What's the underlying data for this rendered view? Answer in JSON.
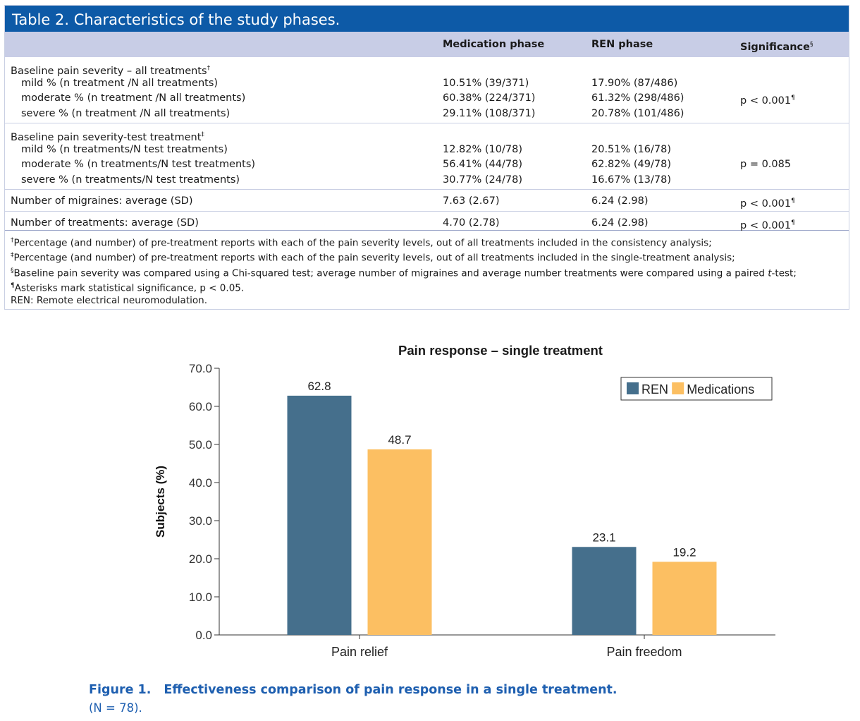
{
  "table": {
    "title": "Table 2.  Characteristics of the study phases.",
    "headers": {
      "col1": "",
      "col2": "Medication phase",
      "col3": "REN phase",
      "col4": "Significance",
      "col4_sup": "§"
    },
    "groups": [
      {
        "heading": "Baseline pain severity – all treatments",
        "heading_sup": "†",
        "rows": [
          {
            "label": "mild % (n treatment /N all treatments)",
            "med": "10.51% (39/371)",
            "ren": "17.90% (87/486)",
            "sig": "",
            "sig_sup": ""
          },
          {
            "label": "moderate % (n treatment /N all treatments)",
            "med": "60.38% (224/371)",
            "ren": "61.32% (298/486)",
            "sig": "p < 0.001",
            "sig_sup": "¶"
          },
          {
            "label": "severe % (n treatment /N all treatments)",
            "med": "29.11% (108/371)",
            "ren": "20.78% (101/486)",
            "sig": "",
            "sig_sup": ""
          }
        ]
      },
      {
        "heading": "Baseline pain severity-test treatment",
        "heading_sup": "‡",
        "rows": [
          {
            "label": "mild % (n treatments/N test treatments)",
            "med": "12.82% (10/78)",
            "ren": "20.51% (16/78)",
            "sig": "",
            "sig_sup": ""
          },
          {
            "label": "moderate % (n treatments/N test treatments)",
            "med": "56.41% (44/78)",
            "ren": "62.82% (49/78)",
            "sig": "p = 0.085",
            "sig_sup": ""
          },
          {
            "label": "severe % (n treatments/N test treatments)",
            "med": "30.77% (24/78)",
            "ren": "16.67% (13/78)",
            "sig": "",
            "sig_sup": ""
          }
        ]
      }
    ],
    "single_rows": [
      {
        "label": "Number of migraines: average (SD)",
        "med": "7.63 (2.67)",
        "ren": "6.24 (2.98)",
        "sig": "p < 0.001",
        "sig_sup": "¶"
      },
      {
        "label": "Number of treatments: average (SD)",
        "med": "4.70 (2.78)",
        "ren": "6.24 (2.98)",
        "sig": "p < 0.001",
        "sig_sup": "¶"
      }
    ],
    "footnotes": [
      {
        "mark": "†",
        "text": "Percentage (and number) of pre-treatment reports with each of the pain severity levels, out of all treatments included in the consistency analysis;"
      },
      {
        "mark": "‡",
        "text": "Percentage (and number) of pre-treatment reports with each of the pain severity levels, out of all treatments included in the single-treatment analysis;"
      },
      {
        "mark": "§",
        "text": "Baseline pain severity was compared using a Chi-squared test; average number of migraines and average number treatments were compared using a paired ",
        "italic": "t",
        "after": "-test;"
      },
      {
        "mark": "¶",
        "text": "Asterisks mark statistical significance, p < 0.05."
      },
      {
        "mark": "",
        "text": "REN: Remote electrical neuromodulation."
      }
    ]
  },
  "chart_data": {
    "type": "bar",
    "title": "Pain response – single treatment",
    "xlabel": "",
    "ylabel": "Subjects (%)",
    "categories": [
      "Pain relief",
      "Pain freedom"
    ],
    "series": [
      {
        "name": "REN",
        "values": [
          62.8,
          23.1
        ],
        "labels": [
          "62.8",
          "23.1"
        ],
        "color": "#456f8c"
      },
      {
        "name": "Medications",
        "values": [
          48.7,
          19.2
        ],
        "labels": [
          "48.7",
          "19.2"
        ],
        "color": "#fcbf62"
      }
    ],
    "ylim": [
      0,
      70
    ],
    "yticks": [
      "0.0",
      "10.0",
      "20.0",
      "30.0",
      "40.0",
      "50.0",
      "60.0",
      "70.0"
    ],
    "grid": false,
    "legend": "top-right"
  },
  "caption": {
    "label": "Figure 1.",
    "text": "Effectiveness comparison of pain response in a single treatment.",
    "note": "(N = 78)."
  },
  "colors": {
    "title_bar": "#0d5aa7",
    "header_band": "#c8cde6",
    "caption": "#1e5fb0"
  }
}
